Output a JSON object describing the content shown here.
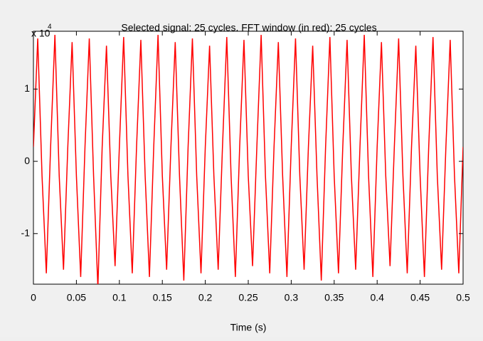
{
  "chart_data": {
    "type": "line",
    "title": "Selected signal: 25 cycles. FFT window (in red): 25 cycles",
    "xlabel": "Time (s)",
    "y_multiplier": "x 10",
    "y_exponent": "4",
    "xlim": [
      0,
      0.5
    ],
    "ylim": [
      -1.7,
      1.8
    ],
    "xticks": [
      0,
      0.05,
      0.1,
      0.15,
      0.2,
      0.25,
      0.3,
      0.35,
      0.4,
      0.45,
      0.5
    ],
    "yticks": [
      -1,
      0,
      1
    ],
    "series": [
      {
        "color": "#ff0000",
        "x": [
          0,
          0.005,
          0.01,
          0.015,
          0.02,
          0.025,
          0.03,
          0.035,
          0.04,
          0.045,
          0.05,
          0.055,
          0.06,
          0.065,
          0.07,
          0.075,
          0.08,
          0.085,
          0.09,
          0.095,
          0.1,
          0.105,
          0.11,
          0.115,
          0.12,
          0.125,
          0.13,
          0.135,
          0.14,
          0.145,
          0.15,
          0.155,
          0.16,
          0.165,
          0.17,
          0.175,
          0.18,
          0.185,
          0.19,
          0.195,
          0.2,
          0.205,
          0.21,
          0.215,
          0.22,
          0.225,
          0.23,
          0.235,
          0.24,
          0.245,
          0.25,
          0.255,
          0.26,
          0.265,
          0.27,
          0.275,
          0.28,
          0.285,
          0.29,
          0.295,
          0.3,
          0.305,
          0.31,
          0.315,
          0.32,
          0.325,
          0.33,
          0.335,
          0.34,
          0.345,
          0.35,
          0.355,
          0.36,
          0.365,
          0.37,
          0.375,
          0.38,
          0.385,
          0.39,
          0.395,
          0.4,
          0.405,
          0.41,
          0.415,
          0.42,
          0.425,
          0.43,
          0.435,
          0.44,
          0.445,
          0.45,
          0.455,
          0.46,
          0.465,
          0.47,
          0.475,
          0.48,
          0.485,
          0.49,
          0.495,
          0.5
        ],
        "values": [
          0.2,
          1.7,
          -0.2,
          -1.55,
          0.2,
          1.75,
          -0.2,
          -1.5,
          0.2,
          1.65,
          -0.2,
          -1.6,
          0.2,
          1.7,
          -0.2,
          -1.75,
          0.2,
          1.6,
          -0.2,
          -1.45,
          0.2,
          1.72,
          -0.2,
          -1.55,
          0.2,
          1.68,
          -0.2,
          -1.6,
          0.2,
          1.75,
          -0.2,
          -1.5,
          0.2,
          1.65,
          -0.2,
          -1.65,
          0.2,
          1.7,
          -0.2,
          -1.55,
          0.2,
          1.6,
          -0.2,
          -1.5,
          0.2,
          1.72,
          -0.2,
          -1.6,
          0.2,
          1.68,
          -0.2,
          -1.45,
          0.2,
          1.75,
          -0.2,
          -1.55,
          0.2,
          1.65,
          -0.2,
          -1.6,
          0.2,
          1.7,
          -0.2,
          -1.5,
          0.2,
          1.6,
          -0.2,
          -1.65,
          0.2,
          1.72,
          -0.2,
          -1.55,
          0.2,
          1.68,
          -0.2,
          -1.5,
          0.2,
          1.75,
          -0.2,
          -1.6,
          0.2,
          1.65,
          -0.2,
          -1.45,
          0.2,
          1.7,
          -0.2,
          -1.55,
          0.2,
          1.6,
          -0.2,
          -1.6,
          0.2,
          1.72,
          -0.2,
          -1.5,
          0.2,
          1.68,
          -0.2,
          -1.55,
          0.2
        ]
      }
    ]
  }
}
